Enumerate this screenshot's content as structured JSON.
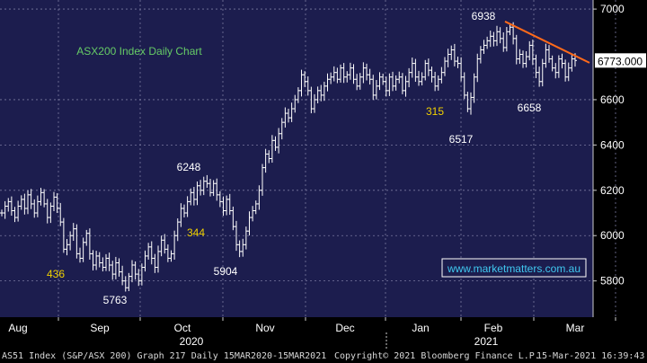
{
  "chart_data": {
    "type": "ohlc",
    "title": "ASX200 Index Daily Chart",
    "ylim": [
      5640,
      7040
    ],
    "y_ticks": [
      5800,
      6000,
      6200,
      6400,
      6600,
      6773,
      7000
    ],
    "y_tick_labels": [
      "5800",
      "6000",
      "6200",
      "6400",
      "6600",
      "6773.000",
      "7000"
    ],
    "last_value_label": "6773.000",
    "month_labels": [
      "Aug",
      "Sep",
      "Oct",
      "Nov",
      "Dec",
      "Jan",
      "Feb",
      "Mar"
    ],
    "year_labels": [
      "2020",
      "2021"
    ],
    "watermark": "www.marketmatters.com.au",
    "annotations": [
      {
        "text": "6938",
        "color": "#ffffff"
      },
      {
        "text": "6248",
        "color": "#ffffff"
      },
      {
        "text": "5904",
        "color": "#ffffff"
      },
      {
        "text": "5763",
        "color": "#ffffff"
      },
      {
        "text": "6517",
        "color": "#ffffff"
      },
      {
        "text": "6658",
        "color": "#ffffff"
      },
      {
        "text": "436",
        "color": "#f0d000"
      },
      {
        "text": "344",
        "color": "#f0d000"
      },
      {
        "text": "315",
        "color": "#f0d000"
      }
    ],
    "closes": [
      6100,
      6130,
      6150,
      6110,
      6080,
      6130,
      6160,
      6120,
      6180,
      6140,
      6100,
      6150,
      6190,
      6140,
      6080,
      6130,
      6170,
      6120,
      6060,
      5940,
      5960,
      6000,
      6030,
      5920,
      5900,
      5970,
      6010,
      5920,
      5870,
      5910,
      5880,
      5860,
      5900,
      5870,
      5830,
      5880,
      5840,
      5800,
      5770,
      5820,
      5870,
      5830,
      5800,
      5860,
      5910,
      5950,
      5900,
      5860,
      5930,
      5980,
      5940,
      5900,
      5920,
      6000,
      6060,
      6120,
      6100,
      6150,
      6190,
      6160,
      6220,
      6200,
      6240,
      6230,
      6190,
      6230,
      6180,
      6150,
      6110,
      6160,
      6110,
      6040,
      5960,
      5930,
      5960,
      6020,
      6080,
      6110,
      6140,
      6200,
      6300,
      6360,
      6340,
      6420,
      6390,
      6450,
      6500,
      6540,
      6520,
      6560,
      6600,
      6640,
      6710,
      6680,
      6640,
      6560,
      6600,
      6640,
      6620,
      6660,
      6690,
      6700,
      6720,
      6690,
      6740,
      6700,
      6710,
      6740,
      6690,
      6660,
      6700,
      6740,
      6710,
      6690,
      6620,
      6660,
      6700,
      6680,
      6640,
      6700,
      6660,
      6690,
      6700,
      6640,
      6680,
      6720,
      6760,
      6700,
      6680,
      6700,
      6760,
      6730,
      6700,
      6660,
      6690,
      6720,
      6770,
      6800,
      6820,
      6770,
      6760,
      6700,
      6620,
      6560,
      6610,
      6700,
      6780,
      6820,
      6840,
      6860,
      6880,
      6860,
      6900,
      6870,
      6830,
      6900,
      6920,
      6870,
      6780,
      6800,
      6760,
      6790,
      6840,
      6780,
      6720,
      6680,
      6760,
      6820,
      6780,
      6740,
      6720,
      6780,
      6760,
      6700,
      6740,
      6780,
      6773
    ],
    "trendline": [
      {
        "from": "6938 peak"
      },
      {
        "to": "right edge",
        "value": 6763
      }
    ]
  },
  "footer": {
    "left": "AS51 Index (S&P/ASX 200) Graph 217  Daily 15MAR2020-15MAR2021",
    "center": "Copyright© 2021 Bloomberg Finance L.P.",
    "right": "15-Mar-2021 16:39:43"
  }
}
